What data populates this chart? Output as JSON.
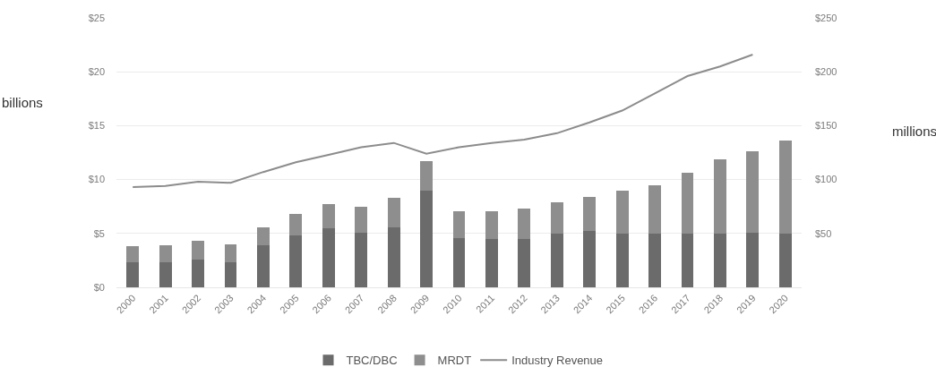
{
  "chart_data": {
    "type": "bar",
    "stacked": true,
    "categories": [
      "2000",
      "2001",
      "2002",
      "2003",
      "2004",
      "2005",
      "2006",
      "2007",
      "2008",
      "2009",
      "2010",
      "2011",
      "2012",
      "2013",
      "2014",
      "2015",
      "2016",
      "2017",
      "2018",
      "2019",
      "2020"
    ],
    "series": [
      {
        "name": "TBC/DBC",
        "color": "#6b6b6b",
        "values": [
          2.3,
          2.3,
          2.6,
          2.3,
          3.9,
          4.8,
          5.5,
          5.1,
          5.6,
          9.0,
          4.6,
          4.5,
          4.5,
          5.0,
          5.2,
          5.0,
          5.0,
          5.0,
          5.0,
          5.1,
          5.0
        ]
      },
      {
        "name": "MRDT",
        "color": "#8e8e8e",
        "values": [
          1.5,
          1.6,
          1.7,
          1.7,
          1.7,
          2.0,
          2.2,
          2.4,
          2.7,
          2.7,
          2.5,
          2.6,
          2.8,
          2.9,
          3.2,
          4.0,
          4.5,
          5.6,
          6.9,
          7.5,
          8.6
        ]
      },
      {
        "name": "Industry Revenue",
        "type": "line",
        "axis": "y2",
        "color": "#8c8c8c",
        "values": [
          93,
          94,
          98,
          97,
          107,
          116,
          123,
          130,
          134,
          124,
          130,
          134,
          137,
          143,
          153,
          164,
          180,
          196,
          205,
          216,
          null
        ]
      }
    ],
    "ylabel": "billions",
    "y2label": "millions",
    "ylim": [
      0,
      25
    ],
    "yticks": [
      {
        "value": 0,
        "label": "$0"
      },
      {
        "value": 5,
        "label": "$5"
      },
      {
        "value": 10,
        "label": "$10"
      },
      {
        "value": 15,
        "label": "$15"
      },
      {
        "value": 20,
        "label": "$20"
      },
      {
        "value": 25,
        "label": "$25"
      }
    ],
    "y2lim": [
      0,
      250
    ],
    "y2ticks": [
      {
        "value": 50,
        "label": "$50"
      },
      {
        "value": 100,
        "label": "$100"
      },
      {
        "value": 150,
        "label": "$150"
      },
      {
        "value": 200,
        "label": "$200"
      },
      {
        "value": 250,
        "label": "$250"
      }
    ],
    "grid": "y",
    "legend": "bottom",
    "marker": "none",
    "line_style": "solid"
  }
}
